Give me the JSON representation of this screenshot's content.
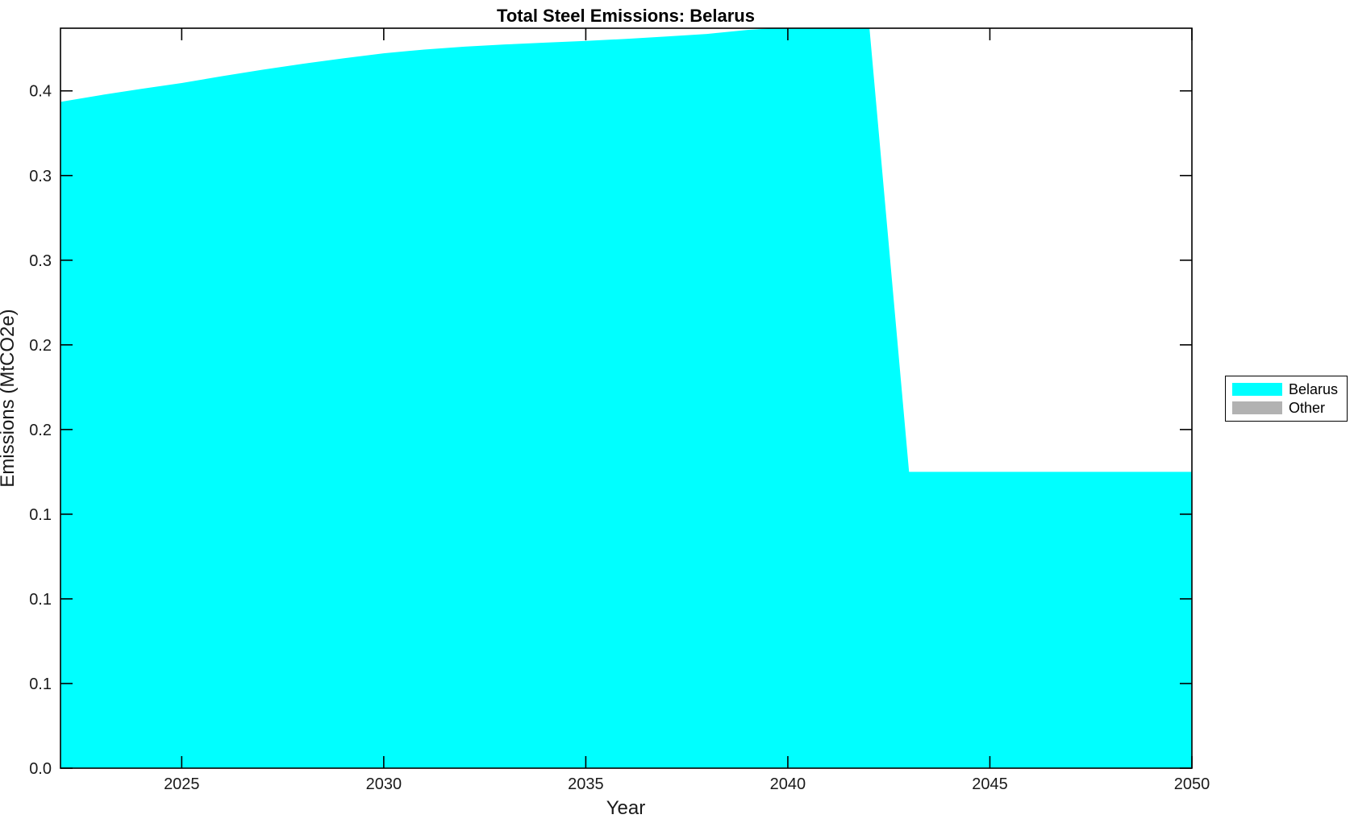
{
  "background_color": "#ffffff",
  "chart_data": {
    "type": "area",
    "title": "Total Steel Emissions: Belarus",
    "xlabel": "Year",
    "ylabel": "Emissions (MtCO2e)",
    "x": [
      2022,
      2023,
      2024,
      2025,
      2026,
      2027,
      2028,
      2029,
      2030,
      2031,
      2032,
      2033,
      2034,
      2035,
      2036,
      2037,
      2038,
      2039,
      2040,
      2041,
      2042,
      2043,
      2044,
      2045,
      2046,
      2047,
      2048,
      2049,
      2050
    ],
    "series": [
      {
        "name": "Belarus",
        "color": "#00FFFF",
        "values": [
          0.3935,
          0.3975,
          0.4012,
          0.4046,
          0.4087,
          0.4125,
          0.416,
          0.4192,
          0.4222,
          0.4244,
          0.4261,
          0.4274,
          0.4285,
          0.4295,
          0.4307,
          0.4321,
          0.4336,
          0.436,
          0.4375,
          0.44,
          0.4425,
          0.175,
          0.175,
          0.175,
          0.175,
          0.175,
          0.175,
          0.175,
          0.175
        ]
      },
      {
        "name": "Other",
        "color": "#B2B2B2",
        "values": [
          0,
          0,
          0,
          0,
          0,
          0,
          0,
          0,
          0,
          0,
          0,
          0,
          0,
          0,
          0,
          0,
          0,
          0,
          0,
          0,
          0,
          0,
          0,
          0,
          0,
          0,
          0,
          0,
          0
        ]
      }
    ],
    "xlim": [
      2022,
      2050
    ],
    "ylim": [
      0,
      0.437
    ],
    "xticks": {
      "values": [
        2025,
        2030,
        2035,
        2040,
        2045,
        2050
      ],
      "labels": [
        "2025",
        "2030",
        "2035",
        "2040",
        "2045",
        "2050"
      ]
    },
    "yticks": {
      "values": [
        0.0,
        0.05,
        0.1,
        0.15,
        0.2,
        0.25,
        0.3,
        0.35,
        0.4
      ],
      "labels": [
        "0.0",
        "0.1",
        "0.1",
        "0.1",
        "0.2",
        "0.2",
        "0.3",
        "0.3",
        "0.4"
      ]
    },
    "grid": false,
    "legend": {
      "position": "right-outside",
      "entries": [
        "Belarus",
        "Other"
      ]
    },
    "axis_color": "#000000"
  }
}
